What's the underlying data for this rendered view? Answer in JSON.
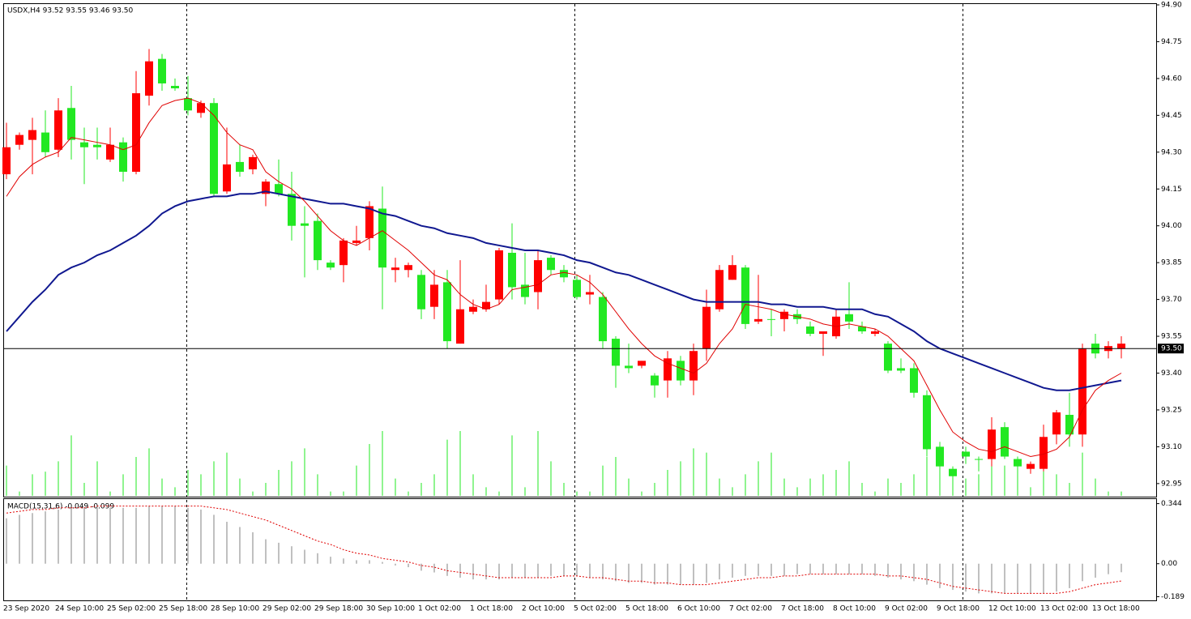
{
  "chart_data": [
    {
      "type": "candlestick",
      "title": "USDX,H4  93.52 93.55 93.46 93.50",
      "categories": [
        "23 Sep 2020",
        null,
        null,
        null,
        "24 Sep 10:00",
        null,
        null,
        null,
        "25 Sep 02:00",
        null,
        null,
        null,
        "25 Sep 18:00",
        null,
        null,
        null,
        "28 Sep 10:00",
        null,
        null,
        null,
        "29 Sep 02:00",
        null,
        null,
        null,
        "29 Sep 18:00",
        null,
        null,
        null,
        "30 Sep 10:00",
        null,
        null,
        null,
        "1 Oct 02:00",
        null,
        null,
        null,
        "1 Oct 18:00",
        null,
        null,
        null,
        "2 Oct 10:00",
        null,
        null,
        null,
        "5 Oct 02:00",
        null,
        null,
        null,
        "5 Oct 18:00",
        null,
        null,
        null,
        "6 Oct 10:00",
        null,
        null,
        null,
        "7 Oct 02:00",
        null,
        null,
        null,
        "7 Oct 18:00",
        null,
        null,
        null,
        "8 Oct 10:00",
        null,
        null,
        null,
        "9 Oct 02:00",
        null,
        null,
        null,
        "9 Oct 18:00",
        null,
        null,
        null,
        "12 Oct 10:00",
        null,
        null,
        null,
        "13 Oct 02:00",
        null,
        null,
        null,
        "13 Oct 18:00",
        null,
        null
      ],
      "open": [
        94.32,
        94.37,
        94.39,
        94.3,
        94.47,
        94.35,
        94.32,
        94.32,
        94.33,
        94.22,
        94.54,
        94.67,
        94.58,
        94.56,
        94.47,
        94.5,
        94.13,
        94.25,
        94.22,
        94.28,
        94.18,
        94.13,
        94.0,
        94.0,
        93.86,
        93.83,
        93.94,
        93.94,
        94.08,
        93.83,
        93.83,
        93.84,
        93.66,
        93.76,
        93.53,
        93.66,
        93.67,
        93.69,
        93.9,
        93.75,
        93.71,
        93.86,
        93.82,
        93.79,
        93.71,
        93.73,
        93.53,
        93.43,
        93.42,
        93.45,
        93.35,
        93.46,
        93.37,
        93.49,
        93.67,
        93.82,
        93.84,
        93.6,
        93.62,
        93.62,
        93.65,
        93.62,
        93.56,
        93.57,
        93.63,
        93.61,
        93.57,
        93.57,
        93.41,
        93.41,
        93.32,
        93.09,
        93.02,
        92.98,
        93.06,
        93.05,
        93.17,
        93.06,
        93.02,
        93.03,
        93.14,
        93.24,
        93.15,
        93.5,
        93.48,
        93.51,
        93.52
      ],
      "high": [
        94.42,
        94.38,
        94.44,
        94.47,
        94.52,
        94.57,
        94.4,
        94.4,
        94.4,
        94.36,
        94.63,
        94.72,
        94.7,
        94.6,
        94.61,
        94.51,
        94.52,
        94.4,
        94.33,
        94.29,
        94.19,
        94.27,
        94.22,
        94.08,
        94.05,
        93.86,
        93.95,
        94.0,
        94.1,
        94.16,
        93.87,
        93.85,
        93.82,
        93.82,
        93.82,
        93.86,
        93.7,
        93.76,
        93.91,
        94.01,
        93.89,
        93.9,
        93.88,
        93.84,
        93.8,
        93.8,
        93.73,
        93.55,
        93.52,
        93.45,
        93.4,
        93.49,
        93.47,
        93.52,
        93.74,
        93.84,
        93.88,
        93.84,
        93.8,
        93.66,
        93.66,
        93.66,
        93.61,
        93.57,
        93.66,
        93.77,
        93.61,
        93.58,
        93.53,
        93.46,
        93.44,
        93.33,
        93.12,
        93.02,
        93.1,
        93.06,
        93.22,
        93.2,
        93.06,
        93.04,
        93.19,
        93.25,
        93.32,
        93.52,
        93.56,
        93.53,
        93.55
      ],
      "low": [
        94.19,
        94.31,
        94.21,
        94.28,
        94.28,
        94.27,
        94.17,
        94.27,
        94.26,
        94.18,
        94.21,
        94.49,
        94.55,
        94.55,
        94.45,
        94.44,
        94.12,
        94.13,
        94.2,
        94.21,
        94.08,
        94.12,
        93.94,
        93.79,
        93.82,
        93.82,
        93.77,
        93.92,
        93.9,
        93.66,
        93.77,
        93.79,
        93.62,
        93.62,
        93.5,
        93.52,
        93.64,
        93.65,
        93.68,
        93.7,
        93.68,
        93.66,
        93.8,
        93.77,
        93.7,
        93.68,
        93.5,
        93.34,
        93.4,
        93.42,
        93.3,
        93.3,
        93.35,
        93.31,
        93.45,
        93.65,
        93.78,
        93.58,
        93.6,
        93.55,
        93.57,
        93.6,
        93.55,
        93.47,
        93.54,
        93.58,
        93.56,
        93.55,
        93.4,
        93.4,
        93.3,
        93.06,
        93.0,
        92.97,
        93.03,
        93.0,
        93.02,
        93.05,
        92.99,
        92.99,
        93.0,
        93.11,
        93.1,
        93.1,
        93.46,
        93.46,
        93.46
      ],
      "close": [
        94.21,
        94.33,
        94.35,
        94.38,
        94.31,
        94.48,
        94.34,
        94.33,
        94.27,
        94.34,
        94.22,
        94.53,
        94.68,
        94.57,
        94.52,
        94.46,
        94.5,
        94.14,
        94.26,
        94.23,
        94.13,
        94.17,
        94.13,
        94.01,
        94.02,
        93.85,
        93.84,
        93.93,
        93.95,
        94.07,
        93.82,
        93.82,
        93.8,
        93.67,
        93.77,
        93.52,
        93.65,
        93.66,
        93.7,
        93.89,
        93.76,
        93.73,
        93.87,
        93.82,
        93.78,
        93.72,
        93.71,
        93.54,
        93.43,
        93.43,
        93.39,
        93.37,
        93.45,
        93.37,
        93.5,
        93.66,
        93.78,
        93.83,
        93.61,
        93.62,
        93.62,
        93.64,
        93.59,
        93.56,
        93.55,
        93.64,
        93.59,
        93.56,
        93.52,
        93.42,
        93.42,
        93.31,
        93.1,
        93.01,
        93.08,
        93.05,
        93.05,
        93.18,
        93.05,
        93.01,
        93.01,
        93.15,
        93.23,
        93.15,
        93.52,
        93.49,
        93.5
      ],
      "up_color": "#22e822",
      "down_color": "#ff0000",
      "ma_fast": {
        "color": "#e00000",
        "values": [
          94.12,
          94.2,
          94.25,
          94.28,
          94.3,
          94.36,
          94.35,
          94.34,
          94.33,
          94.31,
          94.33,
          94.42,
          94.49,
          94.51,
          94.52,
          94.5,
          94.45,
          94.38,
          94.33,
          94.31,
          94.22,
          94.18,
          94.15,
          94.1,
          94.04,
          93.98,
          93.94,
          93.92,
          93.95,
          93.98,
          93.94,
          93.9,
          93.85,
          93.8,
          93.78,
          93.72,
          93.68,
          93.66,
          93.68,
          93.74,
          93.75,
          93.76,
          93.8,
          93.81,
          93.8,
          93.77,
          93.72,
          93.65,
          93.58,
          93.52,
          93.47,
          93.44,
          93.42,
          93.4,
          93.44,
          93.52,
          93.58,
          93.68,
          93.67,
          93.66,
          93.64,
          93.63,
          93.62,
          93.6,
          93.59,
          93.6,
          93.59,
          93.58,
          93.55,
          93.5,
          93.45,
          93.35,
          93.25,
          93.16,
          93.12,
          93.09,
          93.08,
          93.1,
          93.08,
          93.06,
          93.07,
          93.09,
          93.14,
          93.25,
          93.33,
          93.37,
          93.4
        ]
      },
      "ma_slow": {
        "color": "#101890",
        "values": [
          93.57,
          93.63,
          93.69,
          93.74,
          93.8,
          93.83,
          93.85,
          93.88,
          93.9,
          93.93,
          93.96,
          94.0,
          94.05,
          94.08,
          94.1,
          94.11,
          94.12,
          94.12,
          94.13,
          94.13,
          94.14,
          94.13,
          94.12,
          94.11,
          94.1,
          94.09,
          94.09,
          94.08,
          94.07,
          94.05,
          94.04,
          94.02,
          94.0,
          93.99,
          93.97,
          93.96,
          93.95,
          93.93,
          93.92,
          93.91,
          93.9,
          93.9,
          93.89,
          93.88,
          93.86,
          93.85,
          93.83,
          93.81,
          93.8,
          93.78,
          93.76,
          93.74,
          93.72,
          93.7,
          93.69,
          93.69,
          93.69,
          93.69,
          93.69,
          93.68,
          93.68,
          93.67,
          93.67,
          93.67,
          93.66,
          93.66,
          93.66,
          93.64,
          93.63,
          93.6,
          93.57,
          93.53,
          93.5,
          93.48,
          93.46,
          93.44,
          93.42,
          93.4,
          93.38,
          93.36,
          93.34,
          93.33,
          93.33,
          93.34,
          93.35,
          93.36,
          93.37
        ]
      },
      "volume": {
        "color": "#22e822",
        "values": [
          35,
          5,
          25,
          28,
          40,
          70,
          15,
          40,
          5,
          25,
          45,
          55,
          20,
          10,
          30,
          25,
          40,
          50,
          20,
          5,
          15,
          30,
          40,
          55,
          25,
          5,
          5,
          35,
          60,
          75,
          20,
          5,
          15,
          25,
          65,
          75,
          25,
          10,
          5,
          70,
          10,
          75,
          40,
          15,
          5,
          5,
          35,
          45,
          20,
          5,
          15,
          30,
          40,
          55,
          50,
          20,
          10,
          25,
          40,
          50,
          20,
          10,
          20,
          25,
          30,
          40,
          15,
          5,
          20,
          15,
          25,
          45,
          60,
          30,
          20,
          25,
          45,
          35,
          35,
          10,
          30,
          25,
          15,
          50,
          20,
          5,
          5
        ]
      },
      "current_price": {
        "value": 93.5,
        "label": "93.50"
      },
      "ylim": [
        92.9,
        94.9
      ],
      "yticks": [
        {
          "value": 94.9,
          "label": "94.90"
        },
        94.75,
        {
          "value": 94.6,
          "label": "94.60"
        },
        94.45,
        {
          "value": 94.3,
          "label": "94.30"
        },
        94.15,
        {
          "value": 94.0,
          "label": "94.00"
        },
        93.85,
        {
          "value": 93.7,
          "label": "93.70"
        },
        93.55,
        {
          "value": 93.4,
          "label": "93.40"
        },
        93.25,
        {
          "value": 93.1,
          "label": "93.10"
        },
        92.95
      ]
    },
    {
      "type": "macd",
      "title": "MACD(15,31,6) -0.049 -0.099",
      "histogram": {
        "color": "#c0c0c0",
        "values": [
          0.26,
          0.28,
          0.29,
          0.3,
          0.31,
          0.32,
          0.32,
          0.32,
          0.32,
          0.32,
          0.32,
          0.33,
          0.33,
          0.33,
          0.32,
          0.31,
          0.28,
          0.24,
          0.21,
          0.18,
          0.14,
          0.12,
          0.1,
          0.08,
          0.06,
          0.04,
          0.03,
          0.02,
          0.02,
          0.01,
          -0.01,
          -0.02,
          -0.04,
          -0.05,
          -0.07,
          -0.08,
          -0.09,
          -0.09,
          -0.09,
          -0.08,
          -0.08,
          -0.08,
          -0.07,
          -0.07,
          -0.07,
          -0.08,
          -0.09,
          -0.1,
          -0.11,
          -0.11,
          -0.12,
          -0.12,
          -0.12,
          -0.12,
          -0.11,
          -0.09,
          -0.08,
          -0.07,
          -0.07,
          -0.07,
          -0.07,
          -0.06,
          -0.06,
          -0.06,
          -0.06,
          -0.06,
          -0.06,
          -0.07,
          -0.08,
          -0.09,
          -0.1,
          -0.12,
          -0.14,
          -0.15,
          -0.16,
          -0.17,
          -0.17,
          -0.17,
          -0.17,
          -0.17,
          -0.17,
          -0.16,
          -0.14,
          -0.1,
          -0.08,
          -0.06,
          -0.049
        ]
      },
      "signal": {
        "color": "#e00000",
        "values": [
          0.29,
          0.3,
          0.31,
          0.31,
          0.32,
          0.32,
          0.32,
          0.33,
          0.33,
          0.33,
          0.33,
          0.33,
          0.33,
          0.33,
          0.33,
          0.33,
          0.32,
          0.31,
          0.29,
          0.27,
          0.25,
          0.22,
          0.19,
          0.16,
          0.13,
          0.11,
          0.08,
          0.06,
          0.05,
          0.03,
          0.02,
          0.01,
          -0.01,
          -0.02,
          -0.04,
          -0.05,
          -0.06,
          -0.07,
          -0.08,
          -0.08,
          -0.08,
          -0.08,
          -0.08,
          -0.07,
          -0.07,
          -0.08,
          -0.08,
          -0.09,
          -0.1,
          -0.1,
          -0.11,
          -0.11,
          -0.12,
          -0.12,
          -0.12,
          -0.11,
          -0.1,
          -0.09,
          -0.08,
          -0.08,
          -0.07,
          -0.07,
          -0.06,
          -0.06,
          -0.06,
          -0.06,
          -0.06,
          -0.06,
          -0.07,
          -0.07,
          -0.08,
          -0.09,
          -0.11,
          -0.13,
          -0.14,
          -0.15,
          -0.16,
          -0.17,
          -0.17,
          -0.17,
          -0.17,
          -0.17,
          -0.16,
          -0.14,
          -0.12,
          -0.11,
          -0.099
        ]
      },
      "ylim": [
        -0.21,
        0.37
      ],
      "yticks": [
        0.344,
        {
          "value": 0,
          "label": "0.00"
        },
        -0.189
      ]
    }
  ]
}
